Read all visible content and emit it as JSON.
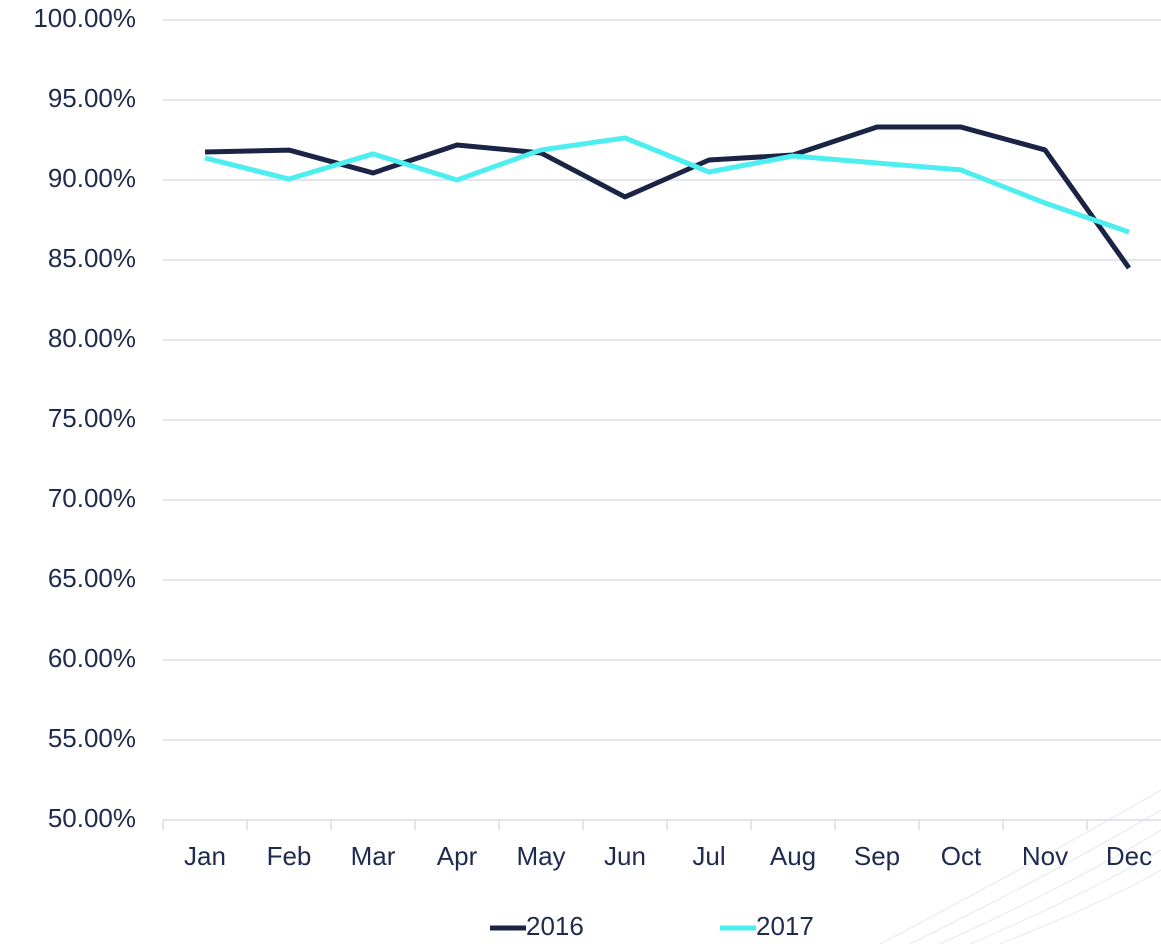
{
  "chart_data": {
    "type": "line",
    "categories": [
      "Jan",
      "Feb",
      "Mar",
      "Apr",
      "May",
      "Jun",
      "Jul",
      "Aug",
      "Sep",
      "Oct",
      "Nov",
      "Dec"
    ],
    "series": [
      {
        "name": "2016",
        "color": "#1b2444",
        "values": [
          91.75,
          91.87,
          90.44,
          92.19,
          91.69,
          88.94,
          91.25,
          91.56,
          93.31,
          93.31,
          91.88,
          84.5
        ]
      },
      {
        "name": "2017",
        "color": "#4deef0",
        "values": [
          91.38,
          90.06,
          91.63,
          90.0,
          91.88,
          92.63,
          90.5,
          91.5,
          91.06,
          90.63,
          88.56,
          86.75
        ]
      }
    ],
    "ylim": [
      50,
      100
    ],
    "yticks": [
      {
        "value": 50,
        "label": "50.00%"
      },
      {
        "value": 55,
        "label": "55.00%"
      },
      {
        "value": 60,
        "label": "60.00%"
      },
      {
        "value": 65,
        "label": "65.00%"
      },
      {
        "value": 70,
        "label": "70.00%"
      },
      {
        "value": 75,
        "label": "75.00%"
      },
      {
        "value": 80,
        "label": "80.00%"
      },
      {
        "value": 85,
        "label": "85.00%"
      },
      {
        "value": 90,
        "label": "90.00%"
      },
      {
        "value": 95,
        "label": "95.00%"
      },
      {
        "value": 100,
        "label": "100.00%"
      }
    ],
    "grid": true,
    "legend": "bottom"
  }
}
